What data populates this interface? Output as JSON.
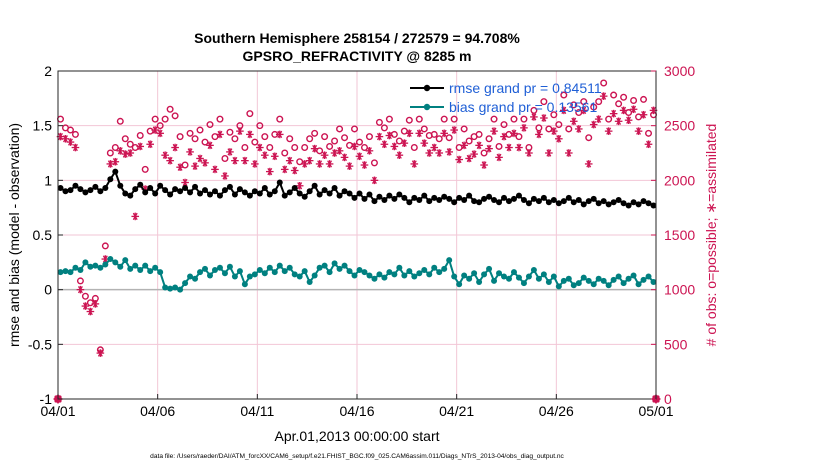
{
  "chart_data": {
    "type": "line",
    "title": [
      "Southern Hemisphere 258154 / 272579 = 94.708%",
      "GPSRO_REFRACTIVITY @ 8285 m"
    ],
    "xlabel": "Apr.01,2013 00:00:00 start",
    "ylabel_left": "rmse and bias (model - observation)",
    "ylabel_right": "# of obs: o=possible; ∗=assimilated",
    "x_ticks": [
      "04/01",
      "04/06",
      "04/11",
      "04/16",
      "04/21",
      "04/26",
      "05/01"
    ],
    "x_tick_days": [
      0,
      5,
      10,
      15,
      20,
      25,
      30
    ],
    "xlim": [
      0,
      30
    ],
    "ylim_left": [
      -1,
      2
    ],
    "ylim_right": [
      0,
      3000
    ],
    "yticks_left": [
      -1,
      -0.5,
      0,
      0.5,
      1,
      1.5,
      2
    ],
    "yticks_right": [
      0,
      500,
      1000,
      1500,
      2000,
      2500,
      3000
    ],
    "legend_position": "top-right",
    "colors": {
      "rmse": "#000000",
      "bias": "#008080",
      "obs": "#cc1452",
      "zero_line": "#b3b3b3",
      "grid": "#f2c6d6",
      "right_axis": "#cc1452",
      "legend_text": "#1f5fd6"
    },
    "series": [
      {
        "name": "rmse grand pr = 0.84511",
        "axis": "left",
        "marker": "circle",
        "x": [
          0.125,
          0.375,
          0.625,
          0.875,
          1.125,
          1.375,
          1.625,
          1.875,
          2.125,
          2.375,
          2.625,
          2.875,
          3.125,
          3.375,
          3.625,
          3.875,
          4.125,
          4.375,
          4.625,
          4.875,
          5.125,
          5.375,
          5.625,
          5.875,
          6.125,
          6.375,
          6.625,
          6.875,
          7.125,
          7.375,
          7.625,
          7.875,
          8.125,
          8.375,
          8.625,
          8.875,
          9.125,
          9.375,
          9.625,
          9.875,
          10.125,
          10.375,
          10.625,
          10.875,
          11.125,
          11.375,
          11.625,
          11.875,
          12.125,
          12.375,
          12.625,
          12.875,
          13.125,
          13.375,
          13.625,
          13.875,
          14.125,
          14.375,
          14.625,
          14.875,
          15.125,
          15.375,
          15.625,
          15.875,
          16.125,
          16.375,
          16.625,
          16.875,
          17.125,
          17.375,
          17.625,
          17.875,
          18.125,
          18.375,
          18.625,
          18.875,
          19.125,
          19.375,
          19.625,
          19.875,
          20.125,
          20.375,
          20.625,
          20.875,
          21.125,
          21.375,
          21.625,
          21.875,
          22.125,
          22.375,
          22.625,
          22.875,
          23.125,
          23.375,
          23.625,
          23.875,
          24.125,
          24.375,
          24.625,
          24.875,
          25.125,
          25.375,
          25.625,
          25.875,
          26.125,
          26.375,
          26.625,
          26.875,
          27.125,
          27.375,
          27.625,
          27.875,
          28.125,
          28.375,
          28.625,
          28.875,
          29.125,
          29.375,
          29.625,
          29.875
        ],
        "values": [
          0.93,
          0.9,
          0.91,
          0.95,
          0.92,
          0.89,
          0.91,
          0.94,
          0.9,
          0.93,
          1.01,
          1.08,
          0.95,
          0.88,
          0.86,
          0.92,
          0.96,
          0.89,
          0.93,
          0.88,
          0.95,
          0.91,
          0.87,
          0.92,
          0.9,
          0.93,
          0.89,
          0.94,
          0.88,
          0.91,
          0.87,
          0.9,
          0.86,
          0.91,
          0.94,
          0.87,
          0.92,
          0.89,
          0.86,
          0.9,
          0.88,
          0.93,
          0.87,
          0.9,
          0.98,
          0.86,
          0.89,
          0.93,
          0.88,
          0.85,
          0.9,
          0.95,
          0.87,
          0.91,
          0.88,
          0.93,
          0.86,
          0.9,
          0.88,
          0.84,
          0.88,
          0.83,
          0.87,
          0.81,
          0.85,
          0.82,
          0.86,
          0.83,
          0.87,
          0.84,
          0.8,
          0.84,
          0.82,
          0.86,
          0.81,
          0.84,
          0.82,
          0.85,
          0.83,
          0.8,
          0.84,
          0.82,
          0.86,
          0.81,
          0.8,
          0.83,
          0.85,
          0.82,
          0.8,
          0.84,
          0.81,
          0.83,
          0.86,
          0.82,
          0.79,
          0.83,
          0.81,
          0.84,
          0.8,
          0.82,
          0.79,
          0.81,
          0.84,
          0.8,
          0.82,
          0.78,
          0.81,
          0.83,
          0.79,
          0.81,
          0.78,
          0.8,
          0.82,
          0.79,
          0.77,
          0.8,
          0.78,
          0.81,
          0.79,
          0.77
        ]
      },
      {
        "name": "bias grand pr = 0.13561",
        "axis": "left",
        "marker": "circle",
        "x": [
          0.125,
          0.375,
          0.625,
          0.875,
          1.125,
          1.375,
          1.625,
          1.875,
          2.125,
          2.375,
          2.625,
          2.875,
          3.125,
          3.375,
          3.625,
          3.875,
          4.125,
          4.375,
          4.625,
          4.875,
          5.125,
          5.375,
          5.625,
          5.875,
          6.125,
          6.375,
          6.625,
          6.875,
          7.125,
          7.375,
          7.625,
          7.875,
          8.125,
          8.375,
          8.625,
          8.875,
          9.125,
          9.375,
          9.625,
          9.875,
          10.125,
          10.375,
          10.625,
          10.875,
          11.125,
          11.375,
          11.625,
          11.875,
          12.125,
          12.375,
          12.625,
          12.875,
          13.125,
          13.375,
          13.625,
          13.875,
          14.125,
          14.375,
          14.625,
          14.875,
          15.125,
          15.375,
          15.625,
          15.875,
          16.125,
          16.375,
          16.625,
          16.875,
          17.125,
          17.375,
          17.625,
          17.875,
          18.125,
          18.375,
          18.625,
          18.875,
          19.125,
          19.375,
          19.625,
          19.875,
          20.125,
          20.375,
          20.625,
          20.875,
          21.125,
          21.375,
          21.625,
          21.875,
          22.125,
          22.375,
          22.625,
          22.875,
          23.125,
          23.375,
          23.625,
          23.875,
          24.125,
          24.375,
          24.625,
          24.875,
          25.125,
          25.375,
          25.625,
          25.875,
          26.125,
          26.375,
          26.625,
          26.875,
          27.125,
          27.375,
          27.625,
          27.875,
          28.125,
          28.375,
          28.625,
          28.875,
          29.125,
          29.375,
          29.625,
          29.875
        ],
        "values": [
          0.16,
          0.17,
          0.16,
          0.2,
          0.18,
          0.25,
          0.21,
          0.22,
          0.2,
          0.23,
          0.28,
          0.25,
          0.21,
          0.27,
          0.19,
          0.22,
          0.18,
          0.22,
          0.17,
          0.2,
          0.16,
          0.02,
          0.01,
          0.02,
          0.0,
          0.06,
          0.12,
          0.1,
          0.16,
          0.19,
          0.13,
          0.18,
          0.2,
          0.15,
          0.21,
          0.12,
          0.17,
          0.05,
          0.12,
          0.14,
          0.18,
          0.15,
          0.2,
          0.16,
          0.22,
          0.17,
          0.2,
          0.14,
          0.12,
          0.17,
          0.07,
          0.13,
          0.2,
          0.22,
          0.16,
          0.24,
          0.19,
          0.22,
          0.17,
          0.13,
          0.18,
          0.16,
          0.13,
          0.1,
          0.14,
          0.11,
          0.16,
          0.14,
          0.2,
          0.13,
          0.17,
          0.12,
          0.15,
          0.18,
          0.14,
          0.2,
          0.16,
          0.19,
          0.27,
          0.12,
          0.05,
          0.13,
          0.1,
          0.15,
          0.07,
          0.14,
          0.19,
          0.08,
          0.15,
          0.12,
          0.1,
          0.16,
          0.11,
          0.06,
          0.12,
          0.18,
          0.1,
          0.14,
          0.07,
          0.12,
          0.03,
          0.08,
          0.1,
          0.04,
          0.06,
          0.11,
          0.08,
          0.05,
          0.1,
          0.08,
          0.04,
          0.09,
          0.12,
          0.06,
          0.1,
          0.13,
          0.05,
          0.09,
          0.12,
          0.07
        ]
      },
      {
        "name": "possible",
        "axis": "right",
        "marker": "open-circle",
        "x": [
          0.125,
          0.375,
          0.625,
          0.875,
          1.125,
          1.375,
          1.625,
          1.875,
          2.125,
          2.375,
          2.625,
          2.875,
          3.125,
          3.375,
          3.625,
          3.875,
          4.125,
          4.375,
          4.625,
          4.875,
          5.125,
          5.375,
          5.625,
          5.875,
          6.125,
          6.375,
          6.625,
          6.875,
          7.125,
          7.375,
          7.625,
          7.875,
          8.125,
          8.375,
          8.625,
          8.875,
          9.125,
          9.375,
          9.625,
          9.875,
          10.125,
          10.375,
          10.625,
          10.875,
          11.125,
          11.375,
          11.625,
          11.875,
          12.125,
          12.375,
          12.625,
          12.875,
          13.125,
          13.375,
          13.625,
          13.875,
          14.125,
          14.375,
          14.625,
          14.875,
          15.125,
          15.375,
          15.625,
          15.875,
          16.125,
          16.375,
          16.625,
          16.875,
          17.125,
          17.375,
          17.625,
          17.875,
          18.125,
          18.375,
          18.625,
          18.875,
          19.125,
          19.375,
          19.625,
          19.875,
          20.125,
          20.375,
          20.625,
          20.875,
          21.125,
          21.375,
          21.625,
          21.875,
          22.125,
          22.375,
          22.625,
          22.875,
          23.125,
          23.375,
          23.625,
          23.875,
          24.125,
          24.375,
          24.625,
          24.875,
          25.125,
          25.375,
          25.625,
          25.875,
          26.125,
          26.375,
          26.625,
          26.875,
          27.125,
          27.375,
          27.625,
          27.875,
          28.125,
          28.375,
          28.625,
          28.875,
          29.125,
          29.375,
          29.625,
          29.875
        ],
        "values": [
          2560,
          2480,
          2460,
          2420,
          1080,
          940,
          880,
          920,
          450,
          1400,
          2250,
          2300,
          2540,
          2380,
          2330,
          2300,
          2410,
          2100,
          2450,
          2560,
          2500,
          2560,
          2650,
          2590,
          2400,
          2140,
          2430,
          2380,
          2460,
          2350,
          2510,
          2400,
          2560,
          2200,
          2440,
          2380,
          2500,
          2300,
          2610,
          2350,
          2500,
          2400,
          2300,
          2420,
          2560,
          2250,
          2380,
          2300,
          2170,
          2300,
          2380,
          2430,
          2270,
          2400,
          2310,
          2360,
          2470,
          2390,
          2320,
          2470,
          2350,
          2300,
          2400,
          2160,
          2530,
          2480,
          2560,
          2420,
          2360,
          2450,
          2550,
          2300,
          2560,
          2470,
          2410,
          2420,
          2380,
          2560,
          2390,
          2560,
          2300,
          2470,
          2360,
          2400,
          2420,
          2250,
          2380,
          2560,
          2310,
          2510,
          2420,
          2560,
          2400,
          2560,
          2300,
          2640,
          2480,
          2720,
          2470,
          2600,
          2510,
          2780,
          2470,
          2690,
          2620,
          2720,
          2390,
          2670,
          2720,
          2890,
          2560,
          2780,
          2700,
          2760,
          2620,
          2730,
          2580,
          2740,
          2430,
          2600
        ]
      },
      {
        "name": "assimilated",
        "axis": "right",
        "marker": "asterisk",
        "x": [
          0.125,
          0.375,
          0.625,
          0.875,
          1.125,
          1.375,
          1.625,
          1.875,
          2.125,
          2.375,
          2.625,
          2.875,
          3.125,
          3.375,
          3.625,
          3.875,
          4.125,
          4.375,
          4.625,
          4.875,
          5.125,
          5.375,
          5.625,
          5.875,
          6.125,
          6.375,
          6.625,
          6.875,
          7.125,
          7.375,
          7.625,
          7.875,
          8.125,
          8.375,
          8.625,
          8.875,
          9.125,
          9.375,
          9.625,
          9.875,
          10.125,
          10.375,
          10.625,
          10.875,
          11.125,
          11.375,
          11.625,
          11.875,
          12.125,
          12.375,
          12.625,
          12.875,
          13.125,
          13.375,
          13.625,
          13.875,
          14.125,
          14.375,
          14.625,
          14.875,
          15.125,
          15.375,
          15.625,
          15.875,
          16.125,
          16.375,
          16.625,
          16.875,
          17.125,
          17.375,
          17.625,
          17.875,
          18.125,
          18.375,
          18.625,
          18.875,
          19.125,
          19.375,
          19.625,
          19.875,
          20.125,
          20.375,
          20.625,
          20.875,
          21.125,
          21.375,
          21.625,
          21.875,
          22.125,
          22.375,
          22.625,
          22.875,
          23.125,
          23.375,
          23.625,
          23.875,
          24.125,
          24.375,
          24.625,
          24.875,
          25.125,
          25.375,
          25.625,
          25.875,
          26.125,
          26.375,
          26.625,
          26.875,
          27.125,
          27.375,
          27.625,
          27.875,
          28.125,
          28.375,
          28.625,
          28.875,
          29.125,
          29.375,
          29.625,
          29.875
        ],
        "values": [
          2400,
          2380,
          2350,
          2300,
          1000,
          850,
          800,
          870,
          420,
          1280,
          2150,
          2170,
          2270,
          2240,
          2250,
          1670,
          2310,
          1920,
          2330,
          2460,
          2430,
          2230,
          2180,
          2300,
          2120,
          1980,
          2260,
          2130,
          2200,
          2160,
          2320,
          2100,
          2420,
          2040,
          2260,
          2180,
          2450,
          2180,
          2420,
          2150,
          2300,
          2230,
          2080,
          2220,
          2420,
          2100,
          2180,
          2090,
          1950,
          2150,
          2180,
          2290,
          2150,
          2230,
          2150,
          2250,
          2270,
          2210,
          2130,
          2310,
          2220,
          2140,
          2270,
          2000,
          2400,
          2330,
          2410,
          2310,
          2230,
          2340,
          2430,
          2150,
          2430,
          2340,
          2250,
          2300,
          2250,
          2430,
          2260,
          2460,
          2190,
          2320,
          2200,
          2240,
          2320,
          2140,
          2290,
          2450,
          2210,
          2400,
          2300,
          2430,
          2300,
          2480,
          2250,
          2580,
          2420,
          2570,
          2250,
          2450,
          2380,
          2640,
          2250,
          2540,
          2470,
          2640,
          2150,
          2510,
          2560,
          2770,
          2450,
          2610,
          2540,
          2640,
          2550,
          2650,
          2450,
          2600,
          2330,
          2640
        ]
      }
    ],
    "footer": "data file: /Users/raeder/DAI/ATM_forcXX/CAM6_setup/f.e21.FHIST_BGC.f09_025.CAM6assim.011/Diags_NTrS_2013-04/obs_diag_output.nc"
  }
}
